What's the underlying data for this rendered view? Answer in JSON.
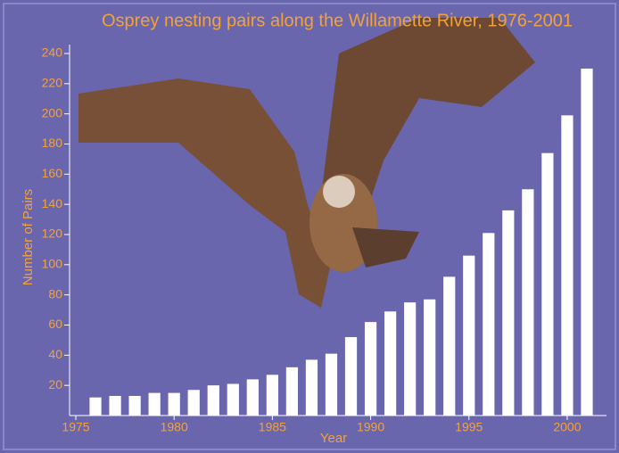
{
  "chart_data": {
    "type": "bar",
    "title": "Osprey nesting pairs along the Willamette River, 1976-2001",
    "x_label": "Year",
    "y_label": "Number of Pairs",
    "x": [
      1976,
      1977,
      1978,
      1979,
      1980,
      1981,
      1982,
      1983,
      1984,
      1985,
      1986,
      1987,
      1988,
      1989,
      1990,
      1991,
      1992,
      1993,
      1994,
      1995,
      1996,
      1997,
      1998,
      1999,
      2000,
      2001
    ],
    "values": [
      12,
      13,
      13,
      15,
      15,
      17,
      20,
      21,
      24,
      27,
      32,
      37,
      41,
      52,
      62,
      69,
      75,
      77,
      92,
      106,
      121,
      136,
      150,
      174,
      199,
      230
    ],
    "color": "#ffffff",
    "xlim": [
      1975,
      2002
    ],
    "xticks": [
      1975,
      1980,
      1985,
      1990,
      1995,
      2000
    ],
    "ylim": [
      0,
      240
    ],
    "yticks": [
      20,
      40,
      60,
      80,
      100,
      120,
      140,
      160,
      180,
      200,
      220,
      240
    ]
  }
}
